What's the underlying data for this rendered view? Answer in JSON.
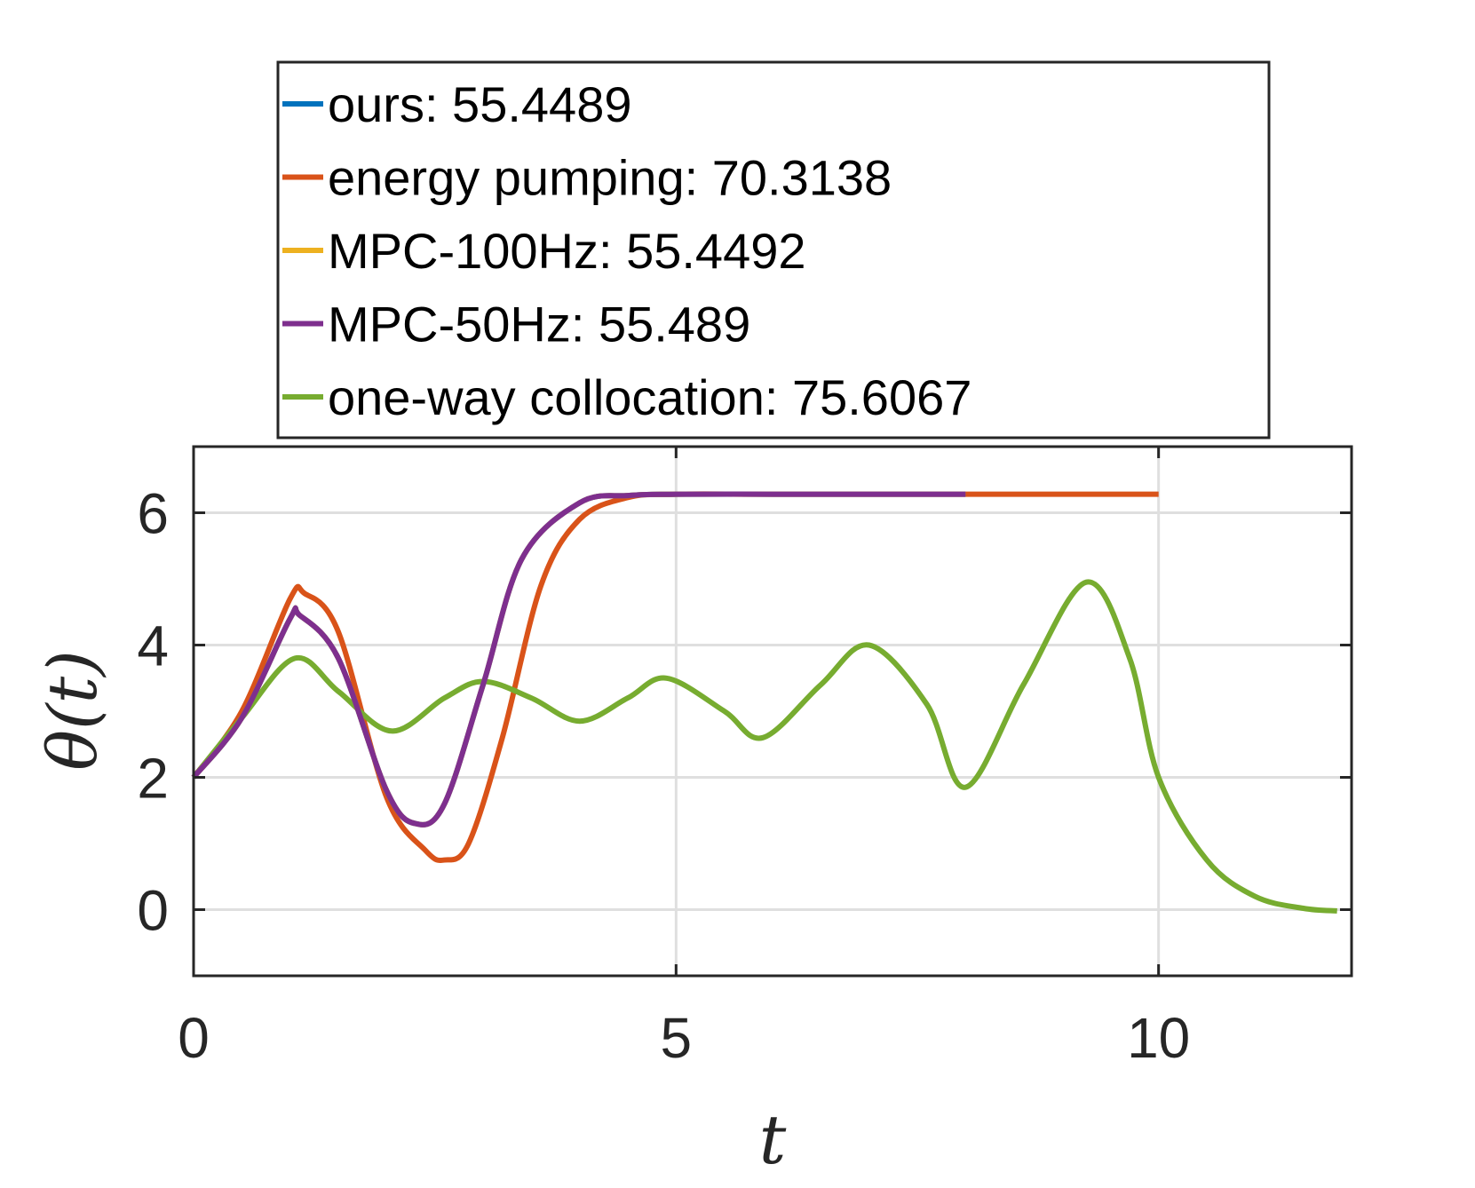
{
  "chart_data": {
    "type": "line",
    "title": "",
    "xlabel": "t",
    "ylabel": "θ(t)",
    "xlim": [
      0,
      12
    ],
    "ylim": [
      -1,
      7
    ],
    "xticks": [
      0,
      5,
      10
    ],
    "yticks": [
      0,
      2,
      4,
      6
    ],
    "xtick_labels": [
      "0",
      "5",
      "10"
    ],
    "ytick_labels": [
      "0",
      "2",
      "4",
      "6"
    ],
    "grid": true,
    "legend_position": "top, outside plot",
    "series": [
      {
        "name": "ours:  55.4489",
        "color": "#0072BD",
        "x": [
          0,
          0.5,
          1.0,
          1.1,
          1.5,
          2.0,
          2.3,
          2.6,
          3.0,
          3.4,
          4.0,
          4.5,
          5.0,
          6.0,
          7.0,
          8.0
        ],
        "y": [
          2.0,
          2.9,
          4.4,
          4.45,
          3.8,
          1.8,
          1.3,
          1.6,
          3.4,
          5.3,
          6.15,
          6.26,
          6.28,
          6.28,
          6.28,
          6.28
        ]
      },
      {
        "name": "energy pumping:  70.3138",
        "color": "#D95319",
        "x": [
          0,
          0.5,
          1.0,
          1.15,
          1.5,
          2.0,
          2.4,
          2.6,
          2.85,
          3.2,
          3.6,
          4.0,
          4.5,
          5.0,
          6.0,
          8.0,
          10.0
        ],
        "y": [
          2.0,
          3.0,
          4.7,
          4.78,
          4.2,
          1.7,
          0.9,
          0.75,
          1.0,
          2.6,
          4.9,
          5.9,
          6.23,
          6.28,
          6.28,
          6.28,
          6.28
        ]
      },
      {
        "name": "MPC-100Hz:  55.4492",
        "color": "#EDB120",
        "x": [
          0,
          0.5,
          1.0,
          1.1,
          1.5,
          2.0,
          2.3,
          2.6,
          3.0,
          3.4,
          4.0,
          4.5,
          5.0,
          6.0,
          7.0,
          8.0
        ],
        "y": [
          2.0,
          2.9,
          4.4,
          4.45,
          3.8,
          1.8,
          1.3,
          1.6,
          3.4,
          5.3,
          6.15,
          6.26,
          6.28,
          6.28,
          6.28,
          6.28
        ]
      },
      {
        "name": "MPC-50Hz:  55.489",
        "color": "#7E2F8E",
        "x": [
          0,
          0.5,
          1.0,
          1.1,
          1.5,
          2.0,
          2.3,
          2.6,
          3.0,
          3.4,
          4.0,
          4.5,
          5.0,
          6.0,
          7.0,
          8.0
        ],
        "y": [
          2.0,
          2.9,
          4.4,
          4.45,
          3.8,
          1.8,
          1.3,
          1.6,
          3.4,
          5.3,
          6.15,
          6.26,
          6.28,
          6.28,
          6.28,
          6.28
        ]
      },
      {
        "name": "one-way collocation:  75.6067",
        "color": "#77AC30",
        "x": [
          0,
          0.5,
          1.05,
          1.5,
          2.05,
          2.6,
          3.0,
          3.5,
          4.0,
          4.5,
          4.9,
          5.5,
          5.9,
          6.5,
          7.0,
          7.6,
          8.0,
          8.6,
          9.25,
          9.7,
          10.0,
          10.5,
          11.0,
          11.5,
          11.85
        ],
        "y": [
          2.0,
          2.9,
          3.8,
          3.3,
          2.7,
          3.2,
          3.45,
          3.2,
          2.85,
          3.2,
          3.5,
          3.0,
          2.6,
          3.4,
          4.0,
          3.1,
          1.85,
          3.4,
          4.95,
          3.8,
          2.0,
          0.75,
          0.2,
          0.02,
          -0.02
        ]
      }
    ]
  }
}
